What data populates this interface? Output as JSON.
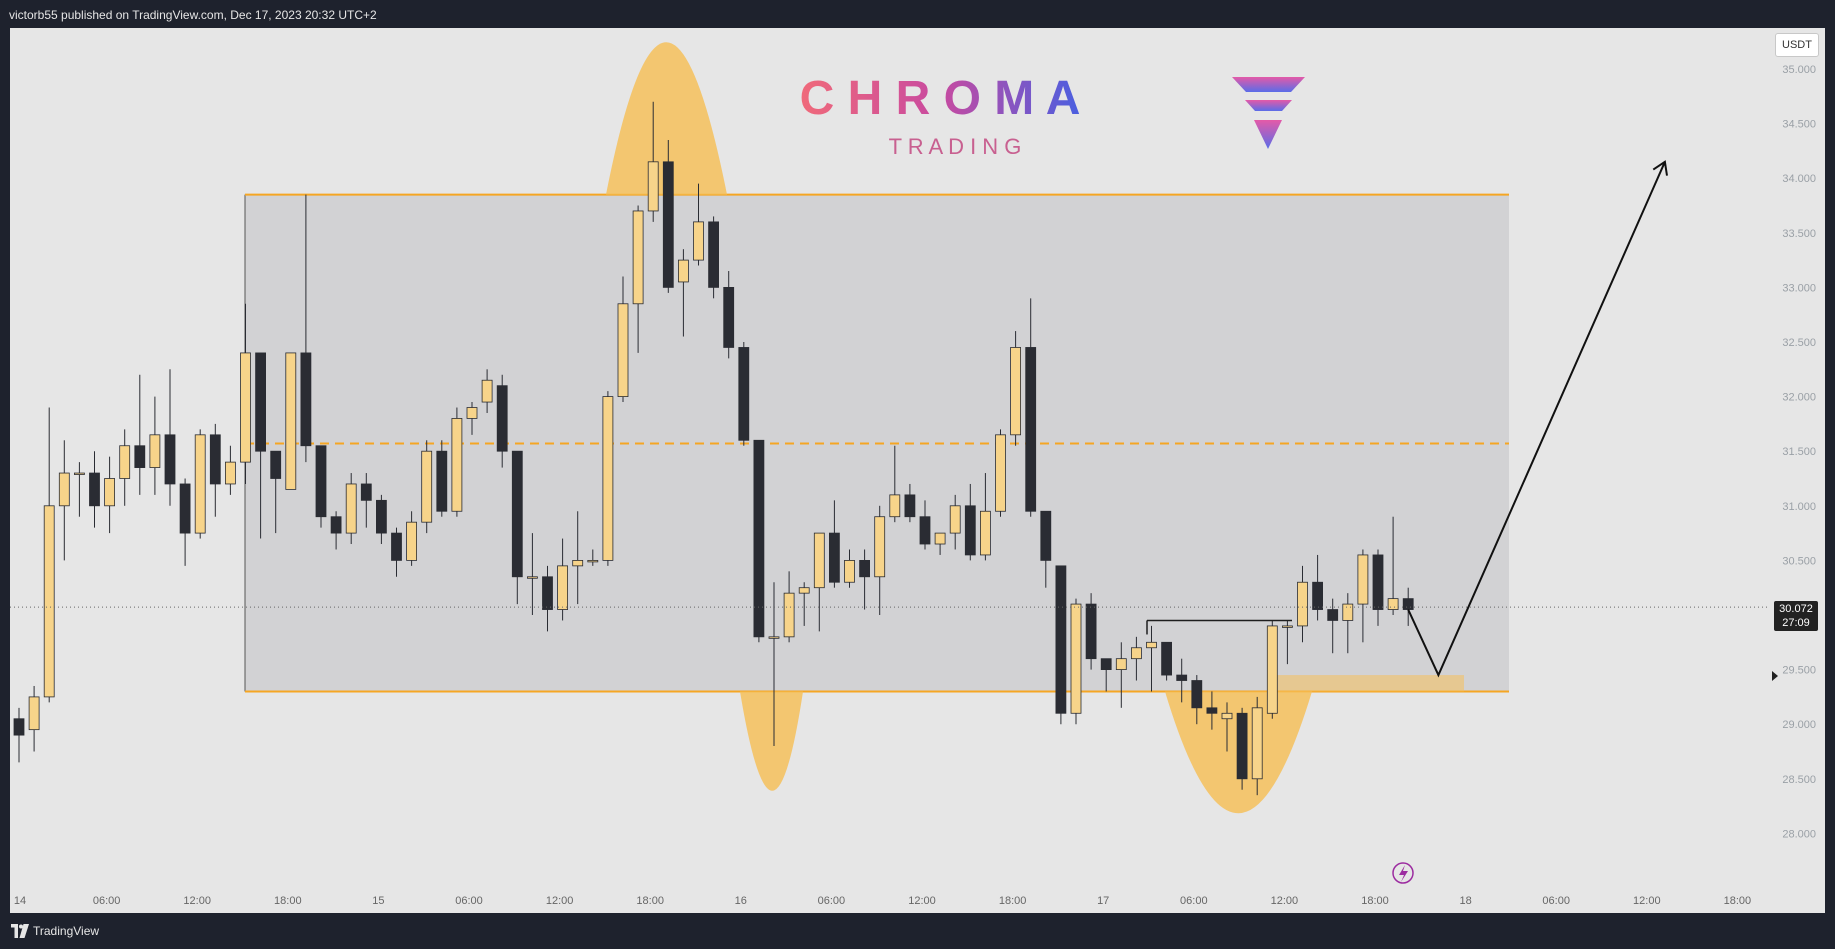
{
  "header": {
    "text": "victorb55 published on TradingView.com, Dec 17, 2023 20:32 UTC+2"
  },
  "footer": {
    "brand": "TradingView"
  },
  "branding": {
    "title": "C H R O M A",
    "subtitle": "T R A D I N G"
  },
  "price_scale": {
    "currency": "USDT",
    "last_price": "30.072",
    "countdown": "27:09"
  },
  "colors": {
    "panel_bg": "#e6e6e6",
    "range_box": "#d2d2d4",
    "range_line": "#f5a623",
    "bull_candle": "#f7d48a",
    "bear_candle": "#2a2c33",
    "highlight": "#f5c05a",
    "brand_gradient_start": "#f06a7a",
    "brand_gradient_end": "#4a5fe0"
  },
  "chart_data": {
    "type": "candlestick",
    "interval": "1h",
    "y_ticks": [
      "35.000",
      "34.500",
      "34.000",
      "33.500",
      "33.000",
      "32.500",
      "32.000",
      "31.500",
      "31.000",
      "30.500",
      "30.000",
      "29.500",
      "29.000",
      "28.500",
      "28.000"
    ],
    "ylim": [
      27.6,
      35.3
    ],
    "x_ticks": [
      "14",
      "06:00",
      "12:00",
      "18:00",
      "15",
      "06:00",
      "12:00",
      "18:00",
      "16",
      "06:00",
      "12:00",
      "18:00",
      "17",
      "06:00",
      "12:00",
      "18:00",
      "18",
      "06:00",
      "12:00",
      "18:00"
    ],
    "x_tick_index": [
      0,
      6,
      12,
      18,
      24,
      30,
      36,
      42,
      48,
      54,
      60,
      66,
      72,
      78,
      84,
      90,
      96,
      102,
      108,
      114
    ],
    "candles": [
      [
        29.05,
        28.9,
        29.15,
        28.65
      ],
      [
        28.95,
        29.25,
        29.35,
        28.75
      ],
      [
        29.25,
        31.0,
        31.9,
        29.2
      ],
      [
        31.0,
        31.3,
        31.6,
        30.5
      ],
      [
        31.3,
        31.3,
        31.4,
        30.9
      ],
      [
        31.3,
        31.0,
        31.5,
        30.8
      ],
      [
        31.0,
        31.25,
        31.45,
        30.75
      ],
      [
        31.25,
        31.55,
        31.7,
        31.0
      ],
      [
        31.55,
        31.35,
        32.2,
        31.1
      ],
      [
        31.35,
        31.65,
        32.0,
        31.1
      ],
      [
        31.65,
        31.2,
        32.25,
        31.0
      ],
      [
        31.2,
        30.75,
        31.25,
        30.45
      ],
      [
        30.75,
        31.65,
        31.7,
        30.7
      ],
      [
        31.65,
        31.2,
        31.75,
        30.9
      ],
      [
        31.2,
        31.4,
        31.55,
        31.1
      ],
      [
        31.4,
        32.4,
        32.85,
        31.2
      ],
      [
        32.4,
        31.5,
        32.4,
        30.7
      ],
      [
        31.5,
        31.25,
        31.5,
        30.75
      ],
      [
        31.15,
        32.4,
        32.4,
        31.15
      ],
      [
        32.4,
        31.55,
        33.85,
        31.4
      ],
      [
        31.55,
        30.9,
        31.5,
        30.8
      ],
      [
        30.9,
        30.75,
        30.95,
        30.6
      ],
      [
        30.75,
        31.2,
        31.3,
        30.65
      ],
      [
        31.2,
        31.05,
        31.3,
        30.8
      ],
      [
        31.05,
        30.75,
        31.1,
        30.65
      ],
      [
        30.75,
        30.5,
        30.8,
        30.35
      ],
      [
        30.5,
        30.85,
        30.95,
        30.45
      ],
      [
        30.85,
        31.5,
        31.6,
        30.75
      ],
      [
        31.5,
        30.95,
        31.6,
        30.9
      ],
      [
        30.95,
        31.8,
        31.9,
        30.9
      ],
      [
        31.8,
        31.9,
        31.95,
        31.65
      ],
      [
        31.95,
        32.15,
        32.25,
        31.85
      ],
      [
        32.1,
        31.5,
        32.2,
        31.35
      ],
      [
        31.5,
        30.35,
        31.5,
        30.1
      ],
      [
        30.35,
        30.35,
        30.75,
        30.0
      ],
      [
        30.35,
        30.05,
        30.45,
        29.85
      ],
      [
        30.05,
        30.45,
        30.7,
        29.95
      ],
      [
        30.45,
        30.5,
        30.95,
        30.1
      ],
      [
        30.5,
        30.5,
        30.6,
        30.45
      ],
      [
        30.5,
        32.0,
        32.05,
        30.45
      ],
      [
        32.0,
        32.85,
        33.1,
        31.95
      ],
      [
        32.85,
        33.7,
        33.75,
        32.4
      ],
      [
        33.7,
        34.15,
        34.7,
        33.6
      ],
      [
        34.15,
        33.0,
        34.35,
        32.95
      ],
      [
        33.05,
        33.25,
        33.35,
        32.55
      ],
      [
        33.25,
        33.6,
        33.95,
        33.2
      ],
      [
        33.6,
        33.0,
        33.65,
        32.9
      ],
      [
        33.0,
        32.45,
        33.15,
        32.35
      ],
      [
        32.45,
        31.6,
        32.5,
        31.55
      ],
      [
        31.6,
        29.8,
        31.6,
        29.75
      ],
      [
        29.8,
        29.8,
        30.3,
        28.8
      ],
      [
        29.8,
        30.2,
        30.4,
        29.75
      ],
      [
        30.2,
        30.25,
        30.3,
        29.9
      ],
      [
        30.25,
        30.75,
        30.75,
        29.85
      ],
      [
        30.75,
        30.3,
        31.05,
        30.25
      ],
      [
        30.3,
        30.5,
        30.6,
        30.25
      ],
      [
        30.5,
        30.35,
        30.6,
        30.05
      ],
      [
        30.35,
        30.9,
        31.0,
        30.0
      ],
      [
        30.9,
        31.1,
        31.55,
        30.85
      ],
      [
        31.1,
        30.9,
        31.2,
        30.85
      ],
      [
        30.9,
        30.65,
        31.05,
        30.6
      ],
      [
        30.65,
        30.75,
        30.75,
        30.55
      ],
      [
        30.75,
        31.0,
        31.1,
        30.6
      ],
      [
        31.0,
        30.55,
        31.2,
        30.5
      ],
      [
        30.55,
        30.95,
        31.3,
        30.5
      ],
      [
        30.95,
        31.65,
        31.7,
        30.9
      ],
      [
        31.65,
        32.45,
        32.6,
        31.55
      ],
      [
        32.45,
        30.95,
        32.9,
        30.9
      ],
      [
        30.95,
        30.5,
        30.95,
        30.25
      ],
      [
        30.45,
        29.1,
        30.45,
        29.0
      ],
      [
        29.1,
        30.1,
        30.15,
        29.0
      ],
      [
        30.1,
        29.6,
        30.2,
        29.5
      ],
      [
        29.6,
        29.5,
        29.55,
        29.3
      ],
      [
        29.5,
        29.6,
        29.75,
        29.15
      ],
      [
        29.6,
        29.7,
        29.8,
        29.4
      ],
      [
        29.7,
        29.75,
        29.9,
        29.3
      ],
      [
        29.75,
        29.45,
        29.75,
        29.4
      ],
      [
        29.45,
        29.4,
        29.6,
        29.2
      ],
      [
        29.4,
        29.15,
        29.45,
        29.0
      ],
      [
        29.15,
        29.1,
        29.3,
        28.95
      ],
      [
        29.05,
        29.1,
        29.2,
        28.75
      ],
      [
        29.1,
        28.5,
        29.15,
        28.4
      ],
      [
        28.5,
        29.15,
        29.25,
        28.35
      ],
      [
        29.1,
        29.9,
        29.95,
        29.05
      ],
      [
        29.9,
        29.9,
        29.95,
        29.55
      ],
      [
        29.9,
        30.3,
        30.45,
        29.75
      ],
      [
        30.3,
        30.05,
        30.55,
        29.95
      ],
      [
        30.05,
        29.95,
        30.15,
        29.65
      ],
      [
        29.95,
        30.1,
        30.2,
        29.65
      ],
      [
        30.1,
        30.55,
        30.6,
        29.75
      ],
      [
        30.55,
        30.05,
        30.6,
        29.9
      ],
      [
        30.05,
        30.15,
        30.9,
        30.0
      ],
      [
        30.15,
        30.05,
        30.25,
        29.9
      ]
    ],
    "range_box": {
      "top": 33.85,
      "mid": 31.57,
      "bottom": 29.3
    },
    "demand_zone": {
      "top": 29.45,
      "bottom": 29.3
    },
    "breakout_line": 29.95,
    "projection": [
      [
        0,
        30.05
      ],
      [
        2,
        29.45
      ],
      [
        17,
        34.15
      ]
    ]
  }
}
